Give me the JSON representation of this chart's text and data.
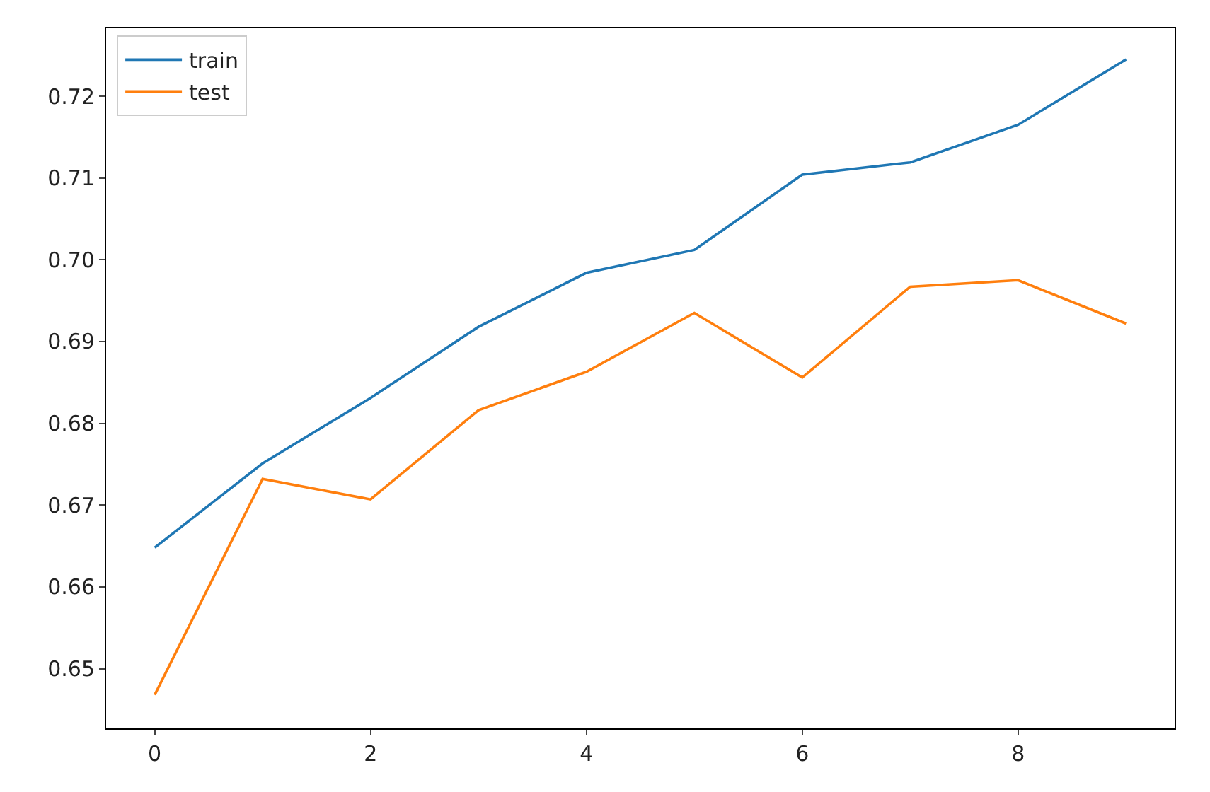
{
  "chart_data": {
    "type": "line",
    "x": [
      0,
      1,
      2,
      3,
      4,
      5,
      6,
      7,
      8,
      9
    ],
    "series": [
      {
        "name": "train",
        "color": "#1f77b4",
        "values": [
          0.6648,
          0.6751,
          0.6831,
          0.6918,
          0.6984,
          0.7012,
          0.7104,
          0.7119,
          0.7165,
          0.7245
        ]
      },
      {
        "name": "test",
        "color": "#ff7f0e",
        "values": [
          0.6468,
          0.6732,
          0.6707,
          0.6816,
          0.6863,
          0.6935,
          0.6856,
          0.6967,
          0.6975,
          0.6922
        ]
      }
    ],
    "xlim": [
      -0.45,
      9.45
    ],
    "xticks": [
      0,
      2,
      4,
      6,
      8
    ],
    "ylim": [
      0.6427,
      0.7283
    ],
    "yticks": [
      {
        "value": 0.65,
        "label": "0.65"
      },
      {
        "value": 0.66,
        "label": "0.66"
      },
      {
        "value": 0.67,
        "label": "0.67"
      },
      {
        "value": 0.68,
        "label": "0.68"
      },
      {
        "value": 0.69,
        "label": "0.69"
      },
      {
        "value": 0.7,
        "label": "0.70"
      },
      {
        "value": 0.71,
        "label": "0.71"
      },
      {
        "value": 0.72,
        "label": "0.72"
      }
    ],
    "legend": "top left",
    "marker": "none",
    "line_style": "solid"
  }
}
